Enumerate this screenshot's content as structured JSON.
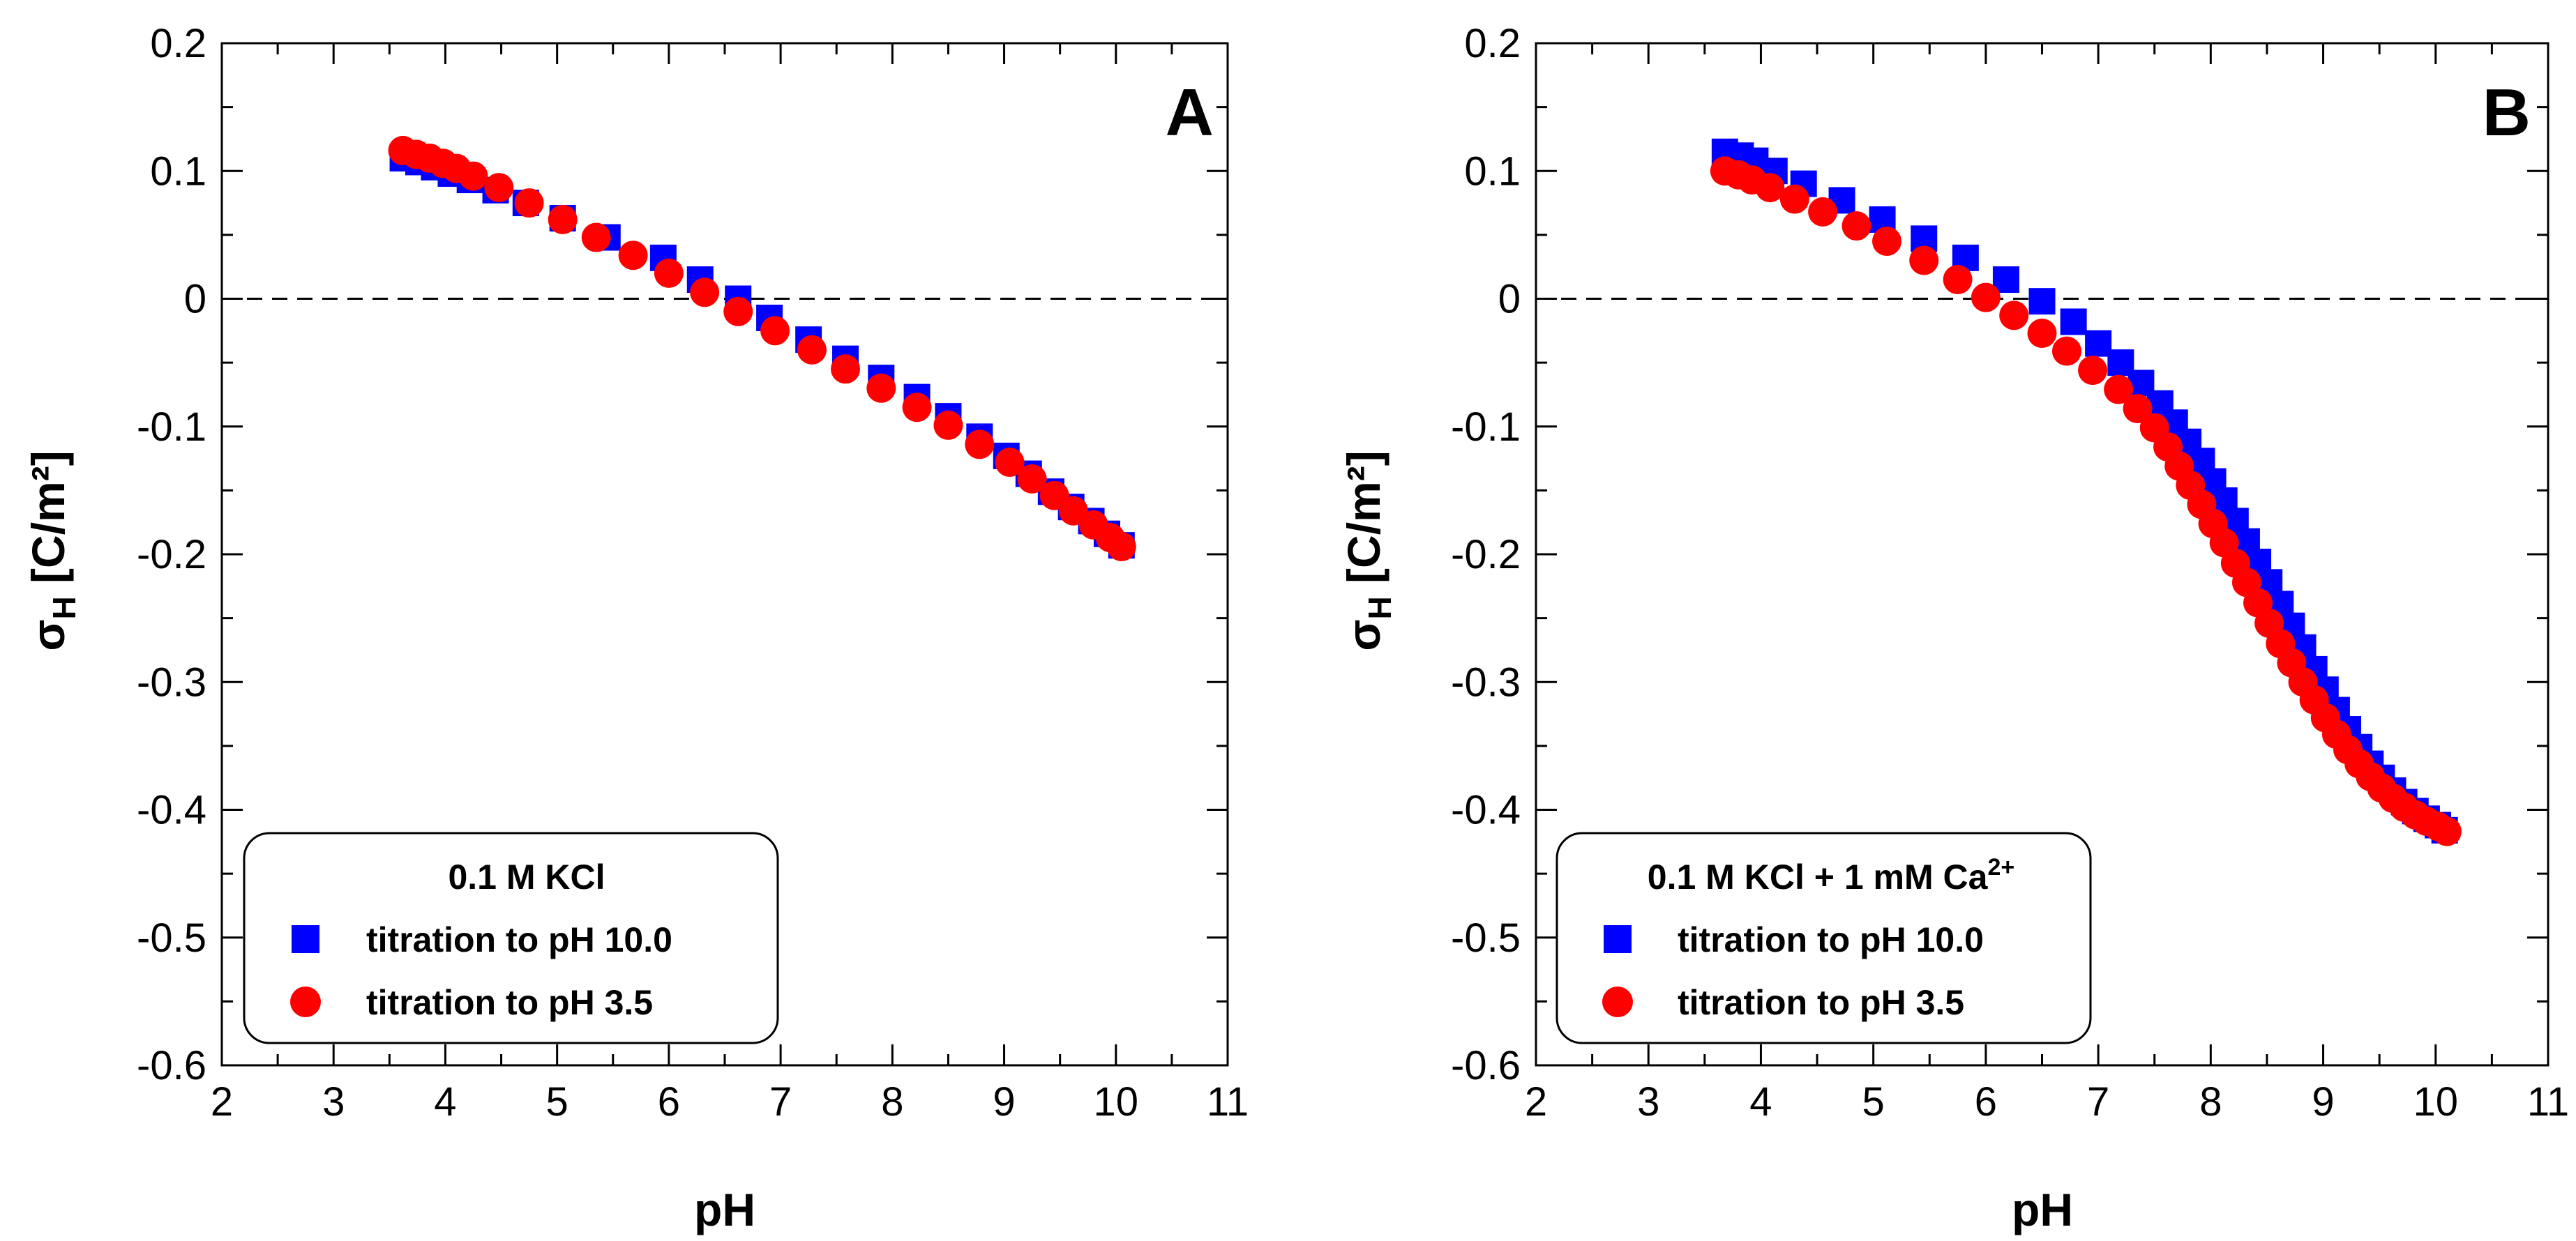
{
  "chart_data": [
    {
      "type": "scatter",
      "panel_label": "A",
      "xlabel": "pH",
      "ylabel_main": "σ",
      "ylabel_sub": "H",
      "ylabel_rest": " [C/m²]",
      "xlim": [
        2,
        11
      ],
      "ylim": [
        -0.6,
        0.2
      ],
      "x_ticks": [
        2,
        3,
        4,
        5,
        6,
        7,
        8,
        9,
        10,
        11
      ],
      "y_ticks": [
        0.2,
        0.1,
        0,
        -0.1,
        -0.2,
        -0.3,
        -0.4,
        -0.5,
        -0.6
      ],
      "x_tick_labels": [
        "2",
        "3",
        "4",
        "5",
        "6",
        "7",
        "8",
        "9",
        "10",
        "11"
      ],
      "y_tick_labels": [
        "0.2",
        "0.1",
        "0",
        "-0.1",
        "-0.2",
        "-0.3",
        "-0.4",
        "-0.5",
        "-0.6"
      ],
      "reference_line": 0,
      "legend": {
        "title": "0.1 M KCl",
        "title_sup": "",
        "placement": "bottom-left"
      },
      "series": [
        {
          "name": "titration to pH 10.0",
          "marker": "square",
          "color": "#0000ff",
          "x": [
            3.62,
            3.76,
            3.9,
            4.05,
            4.22,
            4.45,
            4.72,
            5.05,
            5.45,
            5.95,
            6.28,
            6.62,
            6.9,
            7.25,
            7.58,
            7.9,
            8.22,
            8.5,
            8.78,
            9.02,
            9.22,
            9.42,
            9.6,
            9.78,
            9.92,
            10.05
          ],
          "y": [
            0.11,
            0.107,
            0.103,
            0.098,
            0.093,
            0.085,
            0.075,
            0.063,
            0.048,
            0.032,
            0.015,
            0.0,
            -0.015,
            -0.032,
            -0.047,
            -0.062,
            -0.077,
            -0.092,
            -0.108,
            -0.123,
            -0.137,
            -0.151,
            -0.163,
            -0.174,
            -0.184,
            -0.193
          ]
        },
        {
          "name": "titration to pH 3.5",
          "marker": "circle",
          "color": "#ff0000",
          "x": [
            3.62,
            3.74,
            3.86,
            3.98,
            4.1,
            4.25,
            4.48,
            4.75,
            5.05,
            5.35,
            5.68,
            6.0,
            6.32,
            6.62,
            6.95,
            7.28,
            7.58,
            7.9,
            8.22,
            8.5,
            8.78,
            9.05,
            9.25,
            9.45,
            9.62,
            9.8,
            9.95,
            10.05
          ],
          "y": [
            0.116,
            0.113,
            0.11,
            0.106,
            0.102,
            0.096,
            0.087,
            0.075,
            0.062,
            0.048,
            0.034,
            0.02,
            0.005,
            -0.01,
            -0.025,
            -0.04,
            -0.055,
            -0.07,
            -0.085,
            -0.099,
            -0.114,
            -0.128,
            -0.141,
            -0.154,
            -0.166,
            -0.177,
            -0.187,
            -0.194
          ]
        }
      ]
    },
    {
      "type": "scatter",
      "panel_label": "B",
      "xlabel": "pH",
      "ylabel_main": "σ",
      "ylabel_sub": "H",
      "ylabel_rest": " [C/m²]",
      "xlim": [
        2,
        11
      ],
      "ylim": [
        -0.6,
        0.2
      ],
      "x_ticks": [
        2,
        3,
        4,
        5,
        6,
        7,
        8,
        9,
        10,
        11
      ],
      "y_ticks": [
        0.2,
        0.1,
        0,
        -0.1,
        -0.2,
        -0.3,
        -0.4,
        -0.5,
        -0.6
      ],
      "x_tick_labels": [
        "2",
        "3",
        "4",
        "5",
        "6",
        "7",
        "8",
        "9",
        "10",
        "11"
      ],
      "y_tick_labels": [
        "0.2",
        "0.1",
        "0",
        "-0.1",
        "-0.2",
        "-0.3",
        "-0.4",
        "-0.5",
        "-0.6"
      ],
      "reference_line": 0,
      "legend": {
        "title": "0.1 M KCl + 1 mM Ca",
        "title_sup": "2+",
        "placement": "bottom-left"
      },
      "series": [
        {
          "name": "titration to pH 10.0",
          "marker": "square",
          "color": "#0000ff",
          "x": [
            3.68,
            3.82,
            3.95,
            4.12,
            4.38,
            4.72,
            5.08,
            5.45,
            5.82,
            6.18,
            6.5,
            6.78,
            7.0,
            7.2,
            7.38,
            7.55,
            7.68,
            7.8,
            7.92,
            8.02,
            8.12,
            8.22,
            8.32,
            8.42,
            8.52,
            8.62,
            8.72,
            8.82,
            8.92,
            9.02,
            9.12,
            9.22,
            9.32,
            9.42,
            9.52,
            9.62,
            9.72,
            9.82,
            9.92,
            10.02,
            10.08
          ],
          "y": [
            0.115,
            0.112,
            0.108,
            0.1,
            0.09,
            0.077,
            0.062,
            0.047,
            0.032,
            0.015,
            -0.002,
            -0.018,
            -0.035,
            -0.05,
            -0.066,
            -0.082,
            -0.097,
            -0.112,
            -0.127,
            -0.143,
            -0.158,
            -0.174,
            -0.19,
            -0.206,
            -0.222,
            -0.239,
            -0.256,
            -0.273,
            -0.29,
            -0.306,
            -0.322,
            -0.337,
            -0.351,
            -0.364,
            -0.375,
            -0.385,
            -0.394,
            -0.401,
            -0.407,
            -0.412,
            -0.416
          ]
        },
        {
          "name": "titration to pH 3.5",
          "marker": "circle",
          "color": "#ff0000",
          "x": [
            3.68,
            3.8,
            3.92,
            4.08,
            4.3,
            4.55,
            4.85,
            5.12,
            5.45,
            5.75,
            6.0,
            6.25,
            6.5,
            6.72,
            6.95,
            7.18,
            7.35,
            7.5,
            7.62,
            7.72,
            7.82,
            7.92,
            8.02,
            8.12,
            8.22,
            8.32,
            8.42,
            8.52,
            8.62,
            8.72,
            8.82,
            8.92,
            9.02,
            9.12,
            9.22,
            9.32,
            9.42,
            9.52,
            9.62,
            9.72,
            9.82,
            9.92,
            10.02,
            10.1
          ],
          "y": [
            0.1,
            0.097,
            0.093,
            0.087,
            0.078,
            0.068,
            0.057,
            0.045,
            0.03,
            0.015,
            0.001,
            -0.013,
            -0.027,
            -0.041,
            -0.056,
            -0.071,
            -0.086,
            -0.101,
            -0.116,
            -0.131,
            -0.146,
            -0.161,
            -0.176,
            -0.191,
            -0.207,
            -0.222,
            -0.238,
            -0.254,
            -0.27,
            -0.285,
            -0.3,
            -0.314,
            -0.328,
            -0.341,
            -0.353,
            -0.364,
            -0.374,
            -0.383,
            -0.391,
            -0.398,
            -0.404,
            -0.409,
            -0.413,
            -0.417
          ]
        }
      ]
    }
  ]
}
